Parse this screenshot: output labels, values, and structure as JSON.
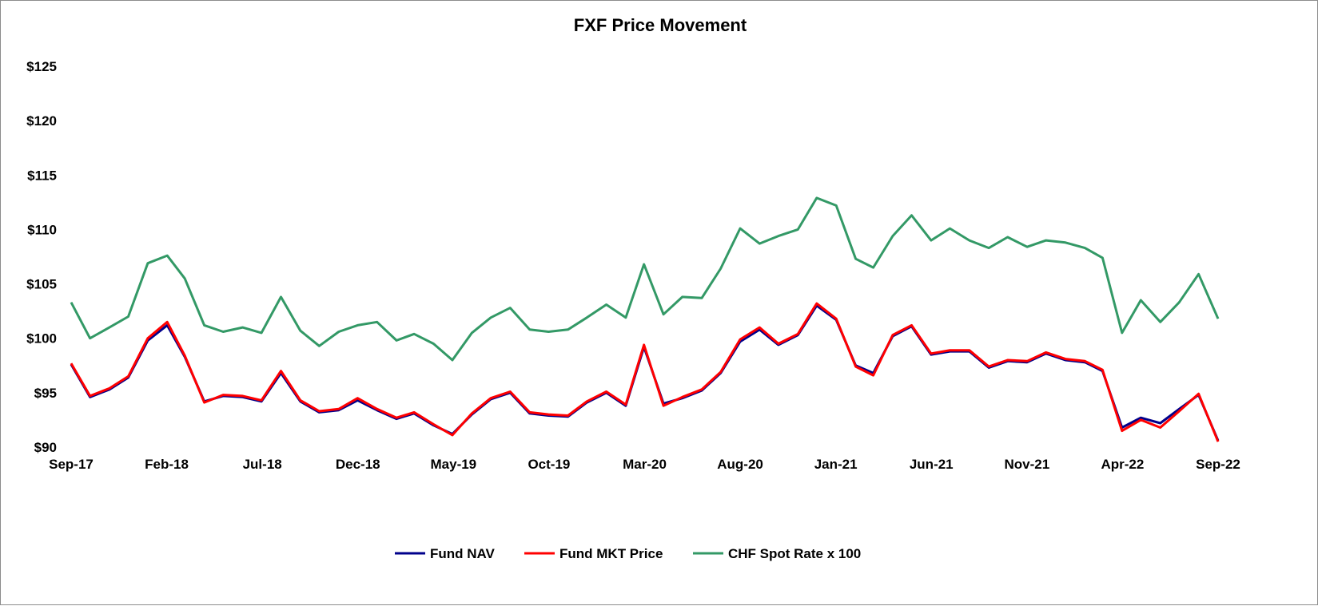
{
  "chart_data": {
    "type": "line",
    "title": "FXF Price Movement",
    "xlabel": "",
    "ylabel": "",
    "ylim": [
      90,
      125
    ],
    "yticks": [
      90,
      95,
      100,
      105,
      110,
      115,
      120,
      125
    ],
    "ytick_labels": [
      "$90",
      "$95",
      "$100",
      "$105",
      "$110",
      "$115",
      "$120",
      "$125"
    ],
    "xtick_labels": [
      "Sep-17",
      "Feb-18",
      "Jul-18",
      "Dec-18",
      "May-19",
      "Oct-19",
      "Mar-20",
      "Aug-20",
      "Jan-21",
      "Jun-21",
      "Nov-21",
      "Apr-22",
      "Sep-22"
    ],
    "x": [
      "2017-09",
      "2017-10",
      "2017-11",
      "2017-12",
      "2018-01",
      "2018-02",
      "2018-03",
      "2018-04",
      "2018-05",
      "2018-06",
      "2018-07",
      "2018-08",
      "2018-09",
      "2018-10",
      "2018-11",
      "2018-12",
      "2019-01",
      "2019-02",
      "2019-03",
      "2019-04",
      "2019-05",
      "2019-06",
      "2019-07",
      "2019-08",
      "2019-09",
      "2019-10",
      "2019-11",
      "2019-12",
      "2020-01",
      "2020-02",
      "2020-03",
      "2020-04",
      "2020-05",
      "2020-06",
      "2020-07",
      "2020-08",
      "2020-09",
      "2020-10",
      "2020-11",
      "2020-12",
      "2021-01",
      "2021-02",
      "2021-03",
      "2021-04",
      "2021-05",
      "2021-06",
      "2021-07",
      "2021-08",
      "2021-09",
      "2021-10",
      "2021-11",
      "2021-12",
      "2022-01",
      "2022-02",
      "2022-03",
      "2022-04",
      "2022-05",
      "2022-06",
      "2022-07",
      "2022-08",
      "2022-09"
    ],
    "grid": false,
    "legend_position": "bottom",
    "series": [
      {
        "name": "Fund NAV",
        "color": "#00008b",
        "values": [
          97.6,
          94.6,
          95.3,
          96.4,
          99.8,
          101.2,
          98.3,
          94.2,
          94.7,
          94.6,
          94.2,
          96.8,
          94.2,
          93.2,
          93.4,
          94.3,
          93.4,
          92.6,
          93.1,
          92.0,
          91.2,
          93.0,
          94.4,
          95.0,
          93.1,
          92.9,
          92.8,
          94.1,
          95.0,
          93.8,
          99.2,
          94.0,
          94.5,
          95.2,
          96.8,
          99.7,
          100.8,
          99.4,
          100.3,
          103.0,
          101.7,
          97.5,
          96.8,
          100.2,
          101.1,
          98.5,
          98.8,
          98.8,
          97.3,
          97.9,
          97.8,
          98.6,
          98.0,
          97.8,
          97.0,
          91.8,
          92.7,
          92.2,
          93.5,
          94.8,
          90.6
        ]
      },
      {
        "name": "Fund MKT Price",
        "color": "#ff0000",
        "values": [
          97.7,
          94.7,
          95.4,
          96.5,
          100.0,
          101.5,
          98.4,
          94.1,
          94.8,
          94.7,
          94.3,
          97.0,
          94.3,
          93.3,
          93.5,
          94.5,
          93.5,
          92.7,
          93.2,
          92.1,
          91.1,
          93.1,
          94.5,
          95.1,
          93.2,
          93.0,
          92.9,
          94.2,
          95.1,
          93.9,
          99.4,
          93.8,
          94.6,
          95.3,
          96.9,
          99.9,
          101.0,
          99.5,
          100.4,
          103.2,
          101.8,
          97.4,
          96.6,
          100.3,
          101.2,
          98.6,
          98.9,
          98.9,
          97.4,
          98.0,
          97.9,
          98.7,
          98.1,
          97.9,
          97.1,
          91.5,
          92.5,
          91.8,
          93.3,
          94.9,
          90.5
        ]
      },
      {
        "name": "CHF Spot Rate x 100",
        "color": "#339966",
        "values": [
          103.3,
          100.0,
          101.0,
          102.0,
          106.9,
          107.6,
          105.5,
          101.2,
          100.6,
          101.0,
          100.5,
          103.8,
          100.7,
          99.3,
          100.6,
          101.2,
          101.5,
          99.8,
          100.4,
          99.5,
          98.0,
          100.5,
          101.9,
          102.8,
          100.8,
          100.6,
          100.8,
          101.9,
          103.1,
          101.9,
          106.8,
          102.2,
          103.8,
          103.7,
          106.4,
          110.1,
          108.7,
          109.4,
          110.0,
          112.9,
          112.2,
          107.3,
          106.5,
          109.4,
          111.3,
          109.0,
          110.1,
          109.0,
          108.3,
          109.3,
          108.4,
          109.0,
          108.8,
          108.3,
          107.4,
          100.5,
          103.5,
          101.5,
          103.3,
          105.9,
          101.8
        ]
      }
    ]
  }
}
